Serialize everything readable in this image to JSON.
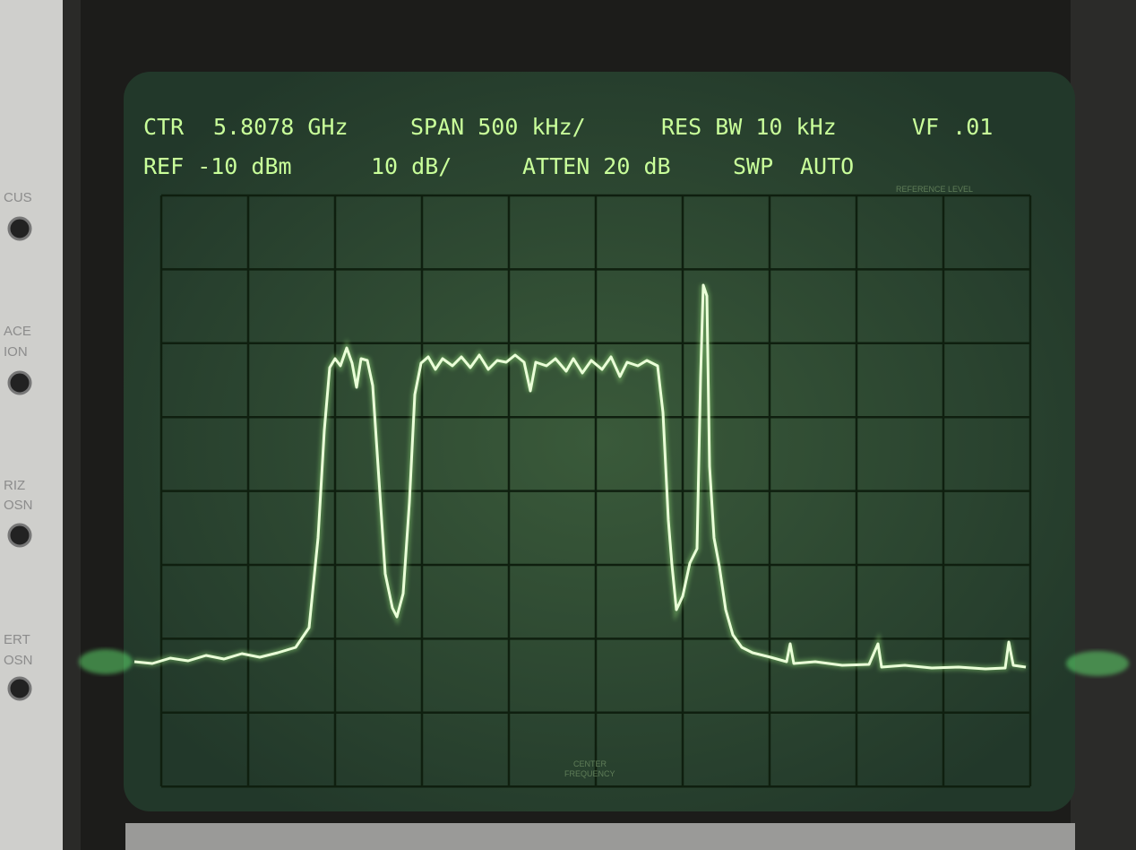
{
  "readout": {
    "row1": [
      "CTR",
      "5.8078 GHz",
      "SPAN 500 kHz/",
      "RES BW 10 kHz",
      "VF .01"
    ],
    "row2": [
      "REF -10 dBm",
      "10 dB/",
      "ATTEN 20 dB",
      "SWP",
      "AUTO"
    ]
  },
  "screen_labels": {
    "reference_level": "REFERENCE LEVEL",
    "center_frequency": [
      "CENTER",
      "FREQUENCY"
    ]
  },
  "panel_labels": [
    "CUS",
    "ACE",
    "ION",
    "RIZ",
    "OSN",
    "ERT",
    "OSN"
  ]
}
